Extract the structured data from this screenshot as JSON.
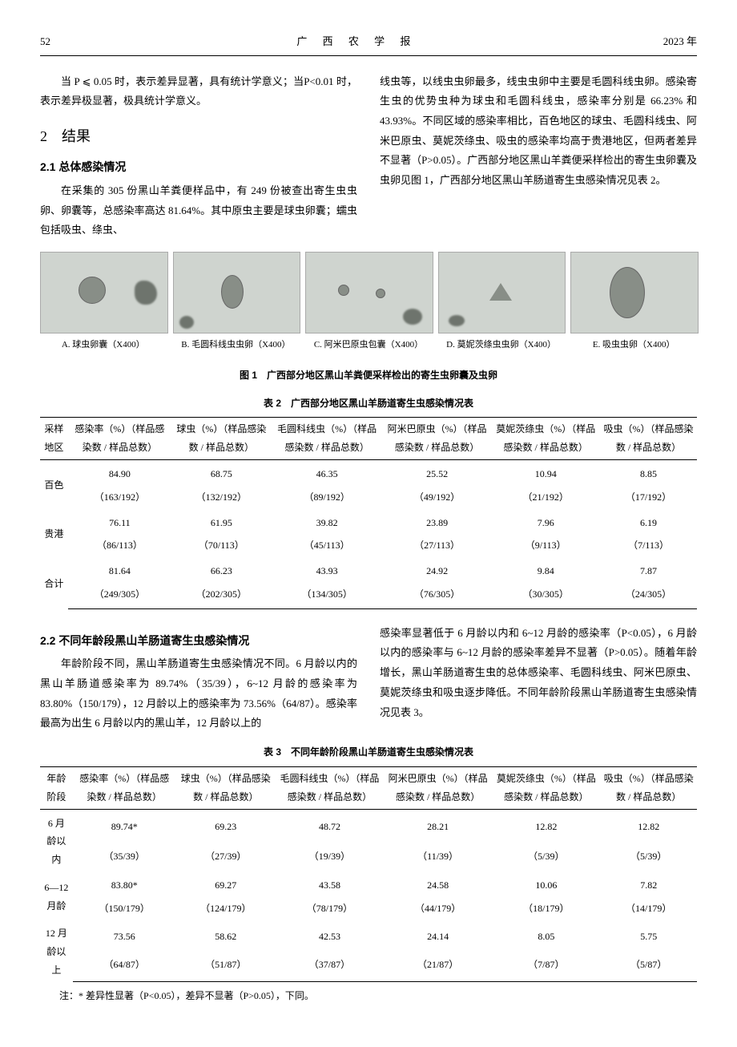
{
  "header": {
    "page": "52",
    "journal": "广 西 农 学 报",
    "year": "2023 年"
  },
  "top_left": [
    "当 P ⩽ 0.05 时，表示差异显著，具有统计学意义；当P<0.01 时，表示差异极显著，极具统计学意义。"
  ],
  "sec2_num": "2",
  "sec2_title": "结果",
  "sec21_title": "2.1 总体感染情况",
  "sec21_left": "在采集的 305 份黑山羊粪便样品中，有 249 份被查出寄生虫虫卵、卵囊等，总感染率高达 81.64%。其中原虫主要是球虫卵囊；蠕虫包括吸虫、绦虫、",
  "sec21_right": "线虫等，以线虫虫卵最多，线虫虫卵中主要是毛圆科线虫卵。感染寄生虫的优势虫种为球虫和毛圆科线虫，感染率分别是 66.23% 和 43.93%。不同区域的感染率相比，百色地区的球虫、毛圆科线虫、阿米巴原虫、莫妮茨绦虫、吸虫的感染率均高于贵港地区，但两者差异不显著（P>0.05）。广西部分地区黑山羊粪便采样检出的寄生虫卵囊及虫卵见图 1，广西部分地区黑山羊肠道寄生虫感染情况见表 2。",
  "figs": [
    "A. 球虫卵囊（X400）",
    "B. 毛圆科线虫虫卵（X400）",
    "C. 阿米巴原虫包囊（X400）",
    "D. 莫妮茨绦虫虫卵（X400）",
    "E. 吸虫虫卵（X400）"
  ],
  "fig1_title": "图 1　广西部分地区黑山羊粪便采样检出的寄生虫卵囊及虫卵",
  "table2_title": "表 2　广西部分地区黑山羊肠道寄生虫感染情况表",
  "table2": {
    "headers": [
      "采样地区",
      "感染率（%）（样品感染数 / 样品总数）",
      "球虫（%）（样品感染数 / 样品总数）",
      "毛圆科线虫（%）（样品感染数 / 样品总数）",
      "阿米巴原虫（%）（样品感染数 / 样品总数）",
      "莫妮茨绦虫（%）（样品感染数 / 样品总数）",
      "吸虫（%）（样品感染数 / 样品总数）"
    ],
    "rows": [
      {
        "r": "百色",
        "a": "84.90",
        "a2": "（163/192）",
        "b": "68.75",
        "b2": "（132/192）",
        "c": "46.35",
        "c2": "（89/192）",
        "d": "25.52",
        "d2": "（49/192）",
        "e": "10.94",
        "e2": "（21/192）",
        "f": "8.85",
        "f2": "（17/192）"
      },
      {
        "r": "贵港",
        "a": "76.11",
        "a2": "（86/113）",
        "b": "61.95",
        "b2": "（70/113）",
        "c": "39.82",
        "c2": "（45/113）",
        "d": "23.89",
        "d2": "（27/113）",
        "e": "7.96",
        "e2": "（9/113）",
        "f": "6.19",
        "f2": "（7/113）"
      },
      {
        "r": "合计",
        "a": "81.64",
        "a2": "（249/305）",
        "b": "66.23",
        "b2": "（202/305）",
        "c": "43.93",
        "c2": "（134/305）",
        "d": "24.92",
        "d2": "（76/305）",
        "e": "9.84",
        "e2": "（30/305）",
        "f": "7.87",
        "f2": "（24/305）"
      }
    ]
  },
  "sec22_title": "2.2 不同年龄段黑山羊肠道寄生虫感染情况",
  "sec22_left": "年龄阶段不同，黑山羊肠道寄生虫感染情况不同。6 月龄以内的黑山羊肠道感染率为 89.74%（35/39），6~12 月龄的感染率为 83.80%（150/179），12 月龄以上的感染率为 73.56%（64/87）。感染率最高为出生 6 月龄以内的黑山羊，12 月龄以上的",
  "sec22_right": "感染率显著低于 6 月龄以内和 6~12 月龄的感染率（P<0.05），6 月龄以内的感染率与 6~12 月龄的感染率差异不显著（P>0.05）。随着年龄增长，黑山羊肠道寄生虫的总体感染率、毛圆科线虫、阿米巴原虫、莫妮茨绦虫和吸虫逐步降低。不同年龄阶段黑山羊肠道寄生虫感染情况见表 3。",
  "table3_title": "表 3　不同年龄阶段黑山羊肠道寄生虫感染情况表",
  "table3": {
    "headers": [
      "年龄阶段",
      "感染率（%）（样品感染数 / 样品总数）",
      "球虫（%）（样品感染数 / 样品总数）",
      "毛圆科线虫（%）（样品感染数 / 样品总数）",
      "阿米巴原虫（%）（样品感染数 / 样品总数）",
      "莫妮茨绦虫（%）（样品感染数 / 样品总数）",
      "吸虫（%）（样品感染数 / 样品总数）"
    ],
    "rows": [
      {
        "r": "6 月龄以内",
        "a": "89.74*",
        "a2": "（35/39）",
        "b": "69.23",
        "b2": "（27/39）",
        "c": "48.72",
        "c2": "（19/39）",
        "d": "28.21",
        "d2": "（11/39）",
        "e": "12.82",
        "e2": "（5/39）",
        "f": "12.82",
        "f2": "（5/39）"
      },
      {
        "r": "6—12 月龄",
        "a": "83.80*",
        "a2": "（150/179）",
        "b": "69.27",
        "b2": "（124/179）",
        "c": "43.58",
        "c2": "（78/179）",
        "d": "24.58",
        "d2": "（44/179）",
        "e": "10.06",
        "e2": "（18/179）",
        "f": "7.82",
        "f2": "（14/179）"
      },
      {
        "r": "12 月龄以上",
        "a": "73.56",
        "a2": "（64/87）",
        "b": "58.62",
        "b2": "（51/87）",
        "c": "42.53",
        "c2": "（37/87）",
        "d": "24.14",
        "d2": "（21/87）",
        "e": "8.05",
        "e2": "（7/87）",
        "f": "5.75",
        "f2": "（5/87）"
      }
    ]
  },
  "note3": "注：* 差异性显著（P<0.05），差异不显著（P>0.05），下同。"
}
